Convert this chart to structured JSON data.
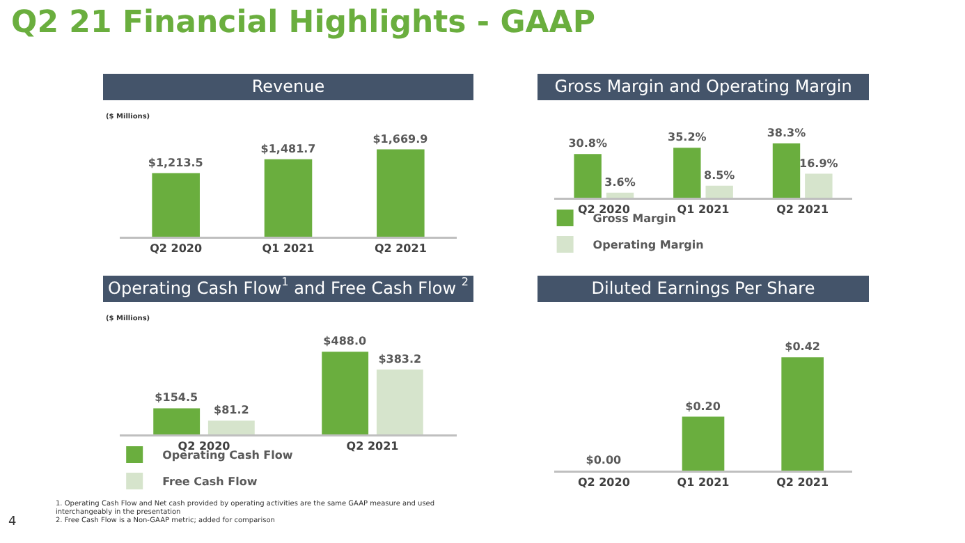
{
  "chart_data": [
    {
      "type": "bar",
      "title": "Revenue",
      "ylabel": "($ Millions)",
      "categories": [
        "Q2 2020",
        "Q1 2021",
        "Q2 2021"
      ],
      "series": [
        {
          "color": "#6aae3e",
          "values": [
            1213.5,
            1481.7,
            1669.9
          ],
          "value_labels": [
            "$1,213.5",
            "$1,481.7",
            "$1,669.9"
          ]
        }
      ],
      "legend": false,
      "grid": false,
      "annotations": [
        "Q2 21 Financial Highlights - GAAP"
      ]
    },
    {
      "type": "bar",
      "title": "Gross Margin and Operating Margin",
      "categories": [
        "Q2 2020",
        "Q1 2021",
        "Q2 2021"
      ],
      "series": [
        {
          "name": "Gross Margin",
          "color": "#6aae3e",
          "values": [
            30.8,
            35.2,
            38.3
          ],
          "value_labels": [
            "30.8%",
            "35.2%",
            "38.3%"
          ]
        },
        {
          "name": "Operating Margin",
          "color": "#d6e4cc",
          "values": [
            3.6,
            8.5,
            16.9
          ],
          "value_labels": [
            "3.6%",
            "8.5%",
            "16.9%"
          ]
        }
      ],
      "legend": "bottom",
      "grid": false
    },
    {
      "type": "bar",
      "title": "Operating Cash Flow$^{1}$ and Free Cash Flow $^{2}$",
      "ylabel": "($ Millions)",
      "categories": [
        "Q2 2020",
        "Q2 2021"
      ],
      "series": [
        {
          "name": "Operating Cash Flow",
          "color": "#6aae3e",
          "values": [
            154.5,
            488.0
          ],
          "value_labels": [
            "$154.5",
            "$488.0"
          ]
        },
        {
          "name": "Free Cash Flow",
          "color": "#d6e4cc",
          "values": [
            81.2,
            383.2
          ],
          "value_labels": [
            "$81.2",
            "$383.2"
          ]
        }
      ],
      "legend": "bottom",
      "grid": false,
      "annotations": [
        "4",
        "1.   Operating Cash Flow and Net cash provided by operating activities are the same GAAP measure and used interchangeably in the presentation",
        "2.   Free Cash Flow is a Non-GAAP metric; added for comparison"
      ]
    },
    {
      "type": "bar",
      "title": "Diluted Earnings Per Share",
      "categories": [
        "Q2 2020",
        "Q1 2021",
        "Q2 2021"
      ],
      "series": [
        {
          "color": "#6aae3e",
          "values": [
            0,
            0.2,
            0.42
          ],
          "value_labels": [
            "$0.00",
            "$0.20",
            "$0.42"
          ]
        }
      ],
      "legend": false,
      "grid": false
    }
  ]
}
